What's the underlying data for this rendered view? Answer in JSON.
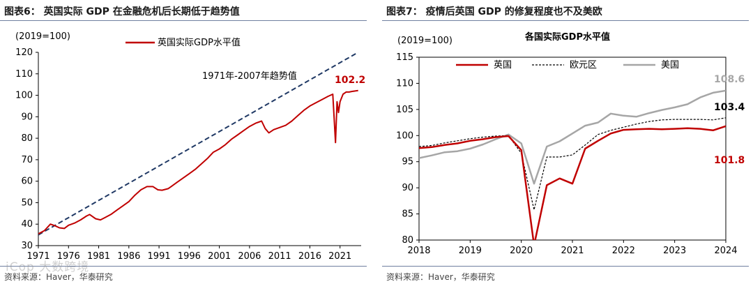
{
  "left": {
    "fig_title": "图表6：  英国实际 GDP 在金融危机后长期低于趋势值",
    "source": "资料来源：Haver，华泰研究",
    "chart_data": {
      "type": "line",
      "title": "",
      "unit_label": "(2019=100)",
      "xlim": [
        1971,
        2024.5
      ],
      "ylim": [
        30,
        120
      ],
      "y_ticks": [
        30,
        40,
        50,
        60,
        70,
        80,
        90,
        100,
        110,
        120
      ],
      "x_ticks": [
        1971,
        1976,
        1981,
        1986,
        1991,
        1996,
        2001,
        2006,
        2011,
        2016,
        2021
      ],
      "x_tick_labels": [
        "1971",
        "1976",
        "1981",
        "1986",
        "1991",
        "1996",
        "2001",
        "2006",
        "2011",
        "2016",
        "2021"
      ],
      "legend": [
        "英国实际GDP水平值"
      ],
      "annotation": "1971年-2007年趋势值",
      "end_label": "102.2",
      "series": [
        {
          "name": "英国实际GDP水平值",
          "color": "#c00000",
          "x": [
            1971,
            1972,
            1973,
            1973.8,
            1974.5,
            1975.3,
            1976,
            1977,
            1978,
            1979,
            1979.5,
            1980.5,
            1981.3,
            1982,
            1983,
            1984,
            1985,
            1986,
            1987,
            1988,
            1989,
            1990,
            1990.8,
            1991.5,
            1992.5,
            1993,
            1994,
            1995,
            1996,
            1997,
            1998,
            1999,
            2000,
            2001,
            2002,
            2003,
            2004,
            2005,
            2006,
            2007,
            2008,
            2008.6,
            2009.2,
            2010,
            2011,
            2012,
            2013,
            2014,
            2015,
            2016,
            2017,
            2018,
            2019,
            2019.8,
            2020.25,
            2020.5,
            2020.75,
            2021,
            2021.5,
            2022,
            2022.5,
            2023,
            2023.5,
            2024
          ],
          "y": [
            35.5,
            37,
            40,
            39.2,
            38.3,
            38.0,
            39.5,
            40.5,
            42,
            43.8,
            44.5,
            42.5,
            42.0,
            43,
            44.5,
            46.5,
            48.5,
            50.5,
            53.5,
            56,
            57.5,
            57.5,
            56,
            55.8,
            56.5,
            57.5,
            59.5,
            61.5,
            63.5,
            65.5,
            68,
            70.5,
            73.5,
            75,
            77,
            79.5,
            81.5,
            83.5,
            85.5,
            87,
            88,
            84.5,
            82.5,
            84,
            85,
            86,
            88,
            90.5,
            93,
            95,
            96.5,
            98,
            99.5,
            100.5,
            78,
            97,
            92,
            97,
            100.5,
            101.5,
            101.5,
            101.8,
            102,
            102.2
          ]
        },
        {
          "name": "1971年-2007年趋势值",
          "color": "#1f3864",
          "dashed": true,
          "x": [
            1971,
            2024
          ],
          "y": [
            35.0,
            120.0
          ]
        }
      ]
    }
  },
  "right": {
    "fig_title": "图表7：  疫情后英国 GDP 的修复程度也不及美欧",
    "source": "资料来源：Haver，华泰研究",
    "chart_data": {
      "type": "line",
      "title": "各国实际GDP水平值",
      "unit_label": "(2019=100)",
      "xlim": [
        2018,
        2024
      ],
      "ylim": [
        80,
        115
      ],
      "y_ticks": [
        80,
        85,
        90,
        95,
        100,
        105,
        110,
        115
      ],
      "x_ticks": [
        2018,
        2019,
        2020,
        2021,
        2022,
        2023,
        2024
      ],
      "x_tick_labels": [
        "2018",
        "2019",
        "2020",
        "2021",
        "2022",
        "2023",
        "2024"
      ],
      "legend": [
        "英国",
        "欧元区",
        "美国"
      ],
      "end_labels": [
        "101.8",
        "103.4",
        "108.6"
      ],
      "series": [
        {
          "name": "英国",
          "color": "#c00000",
          "x": [
            2018,
            2018.25,
            2018.5,
            2018.75,
            2019,
            2019.25,
            2019.5,
            2019.75,
            2020,
            2020.25,
            2020.5,
            2020.75,
            2021,
            2021.25,
            2021.5,
            2021.75,
            2022,
            2022.25,
            2022.5,
            2022.75,
            2023,
            2023.25,
            2023.5,
            2023.75,
            2024
          ],
          "y": [
            97.6,
            97.8,
            98.2,
            98.5,
            99.0,
            99.3,
            99.7,
            99.9,
            97.2,
            79.0,
            90.5,
            91.8,
            90.8,
            97.5,
            99.0,
            100.4,
            101.1,
            101.2,
            101.3,
            101.2,
            101.3,
            101.4,
            101.3,
            101.0,
            101.8
          ]
        },
        {
          "name": "欧元区",
          "color": "#000000",
          "dashed": true,
          "x": [
            2018,
            2018.25,
            2018.5,
            2018.75,
            2019,
            2019.25,
            2019.5,
            2019.75,
            2020,
            2020.25,
            2020.5,
            2020.75,
            2021,
            2021.25,
            2021.5,
            2021.75,
            2022,
            2022.25,
            2022.5,
            2022.75,
            2023,
            2023.25,
            2023.5,
            2023.75,
            2024
          ],
          "y": [
            97.9,
            98.1,
            98.6,
            99.0,
            99.4,
            99.7,
            99.9,
            100.0,
            96.6,
            85.8,
            95.9,
            95.9,
            96.3,
            98.2,
            100.2,
            101.0,
            101.6,
            102.2,
            102.7,
            103.0,
            103.1,
            103.1,
            103.1,
            103.0,
            103.4
          ]
        },
        {
          "name": "美国",
          "color": "#a6a6a6",
          "x": [
            2018,
            2018.25,
            2018.5,
            2018.75,
            2019,
            2019.25,
            2019.5,
            2019.75,
            2020,
            2020.25,
            2020.5,
            2020.75,
            2021,
            2021.25,
            2021.5,
            2021.75,
            2022,
            2022.25,
            2022.5,
            2022.75,
            2023,
            2023.25,
            2023.5,
            2023.75,
            2024
          ],
          "y": [
            95.7,
            96.2,
            96.8,
            97.0,
            97.5,
            98.3,
            99.3,
            100.2,
            98.5,
            90.8,
            97.9,
            98.9,
            100.4,
            101.9,
            102.5,
            104.2,
            103.8,
            103.6,
            104.3,
            104.9,
            105.4,
            106.0,
            107.3,
            108.2,
            108.6
          ]
        }
      ]
    }
  },
  "watermark": "iCop 大数跨境"
}
